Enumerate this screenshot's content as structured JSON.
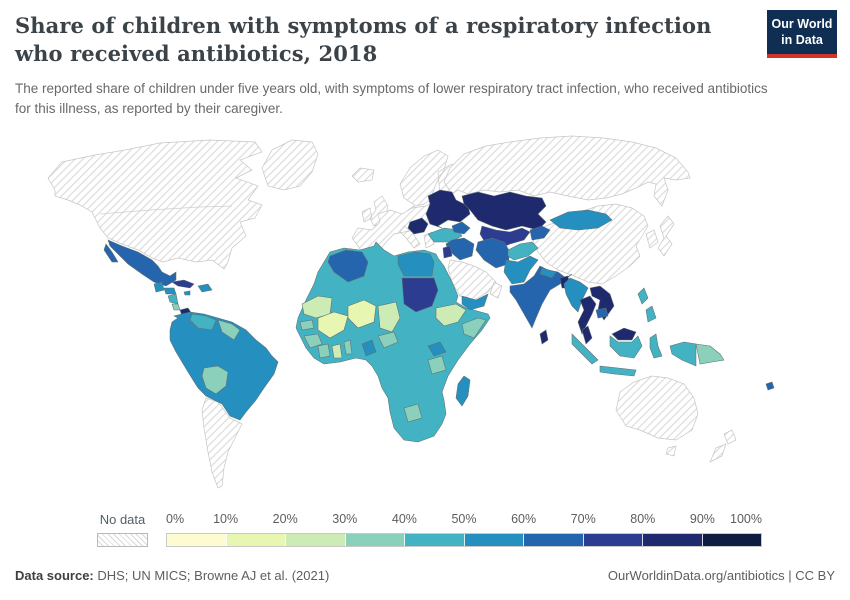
{
  "header": {
    "logo": {
      "line1": "Our World",
      "line2": "in Data",
      "bg_color": "#0f2e52",
      "accent_color": "#d0342c"
    }
  },
  "footer": {
    "datasource_label": "Data source:",
    "datasource_value": " DHS; UN MICS; Browne AJ et al. (2021)",
    "license_text": "OurWorldinData.org/antibiotics | CC BY"
  },
  "chart_data": {
    "type": "choropleth_map",
    "title": "Share of children with symptoms of a respiratory infection who received antibiotics, 2018",
    "subtitle": "The reported share of children under five years old, with symptoms of lower respiratory tract infection, who received antibiotics for this illness, as reported by their caregiver.",
    "year_label": "2018",
    "unit": "%",
    "legend": {
      "no_data_label": "No data",
      "ticks": [
        "0%",
        "10%",
        "20%",
        "30%",
        "40%",
        "50%",
        "60%",
        "70%",
        "80%",
        "90%",
        "100%"
      ],
      "bin_ranges": [
        "0-10%",
        "10-20%",
        "20-30%",
        "30-40%",
        "40-50%",
        "50-60%",
        "60-70%",
        "70-80%",
        "80-90%",
        "90-100%"
      ],
      "bin_colors": [
        "#fcfcd0",
        "#e7f6b1",
        "#cdebb4",
        "#8bd0ba",
        "#43b3c4",
        "#2590c0",
        "#2565ae",
        "#2c3c90",
        "#1f2a6e",
        "#0e1c41"
      ]
    },
    "regions": {
      "canada-usa": {
        "label": "Canada & United States",
        "color": "no_data",
        "bin": "No data"
      },
      "greenland": {
        "label": "Greenland",
        "color": "no_data",
        "bin": "No data"
      },
      "iceland": {
        "label": "Iceland",
        "color": "no_data",
        "bin": "No data"
      },
      "uk-ireland": {
        "label": "United Kingdom & Ireland",
        "color": "no_data",
        "bin": "No data"
      },
      "scandinavia": {
        "label": "Scandinavia & Finland",
        "color": "no_data",
        "bin": "No data"
      },
      "europe-west": {
        "label": "Western & Central Europe",
        "color": "no_data",
        "bin": "No data"
      },
      "russia": {
        "label": "Russia",
        "color": "no_data",
        "bin": "No data"
      },
      "china": {
        "label": "China",
        "color": "no_data",
        "bin": "No data"
      },
      "korea": {
        "label": "South Korea",
        "color": "no_data",
        "bin": "No data"
      },
      "japan": {
        "label": "Japan",
        "color": "no_data",
        "bin": "No data"
      },
      "saudi-arabia": {
        "label": "Saudi Arabia",
        "color": "no_data",
        "bin": "No data"
      },
      "oman": {
        "label": "Oman",
        "color": "no_data",
        "bin": "No data"
      },
      "australia": {
        "label": "Australia",
        "color": "no_data",
        "bin": "No data"
      },
      "new-zealand": {
        "label": "New Zealand",
        "color": "no_data",
        "bin": "No data"
      },
      "southern-cone": {
        "label": "Argentina, Chile, Paraguay & Uruguay",
        "color": "no_data",
        "bin": "No data"
      },
      "mexico": {
        "label": "Mexico",
        "color": "#2565ae",
        "bin": "60-70%"
      },
      "guatemala": {
        "label": "Guatemala & Belize",
        "color": "#2590c0",
        "bin": "50-60%"
      },
      "honduras": {
        "label": "Honduras",
        "color": "#2590c0",
        "bin": "50-60%"
      },
      "nicaragua": {
        "label": "Nicaragua",
        "color": "#43b3c4",
        "bin": "40-50%"
      },
      "costa-rica": {
        "label": "Costa Rica",
        "color": "#8bd0ba",
        "bin": "30-40%"
      },
      "panama": {
        "label": "Panama",
        "color": "#1f2a6e",
        "bin": "80-90%"
      },
      "cuba": {
        "label": "Cuba",
        "color": "#2c3c90",
        "bin": "70-80%"
      },
      "jamaica": {
        "label": "Jamaica",
        "color": "#2590c0",
        "bin": "50-60%"
      },
      "hispaniola": {
        "label": "Haiti & Dominican Republic",
        "color": "#2590c0",
        "bin": "50-60%"
      },
      "south-america": {
        "label": "Brazil, Colombia, Ecuador & Peru",
        "color": "#2590c0",
        "bin": "50-60%"
      },
      "venezuela": {
        "label": "Venezuela",
        "color": "#43b3c4",
        "bin": "40-50%"
      },
      "guyana-suriname": {
        "label": "Guyana & Suriname",
        "color": "#8bd0ba",
        "bin": "30-40%"
      },
      "bolivia": {
        "label": "Bolivia",
        "color": "#8bd0ba",
        "bin": "30-40%"
      },
      "africa-base": {
        "label": "Sub-Saharan Africa (various)",
        "color": "#43b3c4",
        "bin": "40-50%"
      },
      "algeria": {
        "label": "Algeria",
        "color": "#2565ae",
        "bin": "60-70%"
      },
      "egypt": {
        "label": "Egypt",
        "color": "#2590c0",
        "bin": "50-60%"
      },
      "sudan": {
        "label": "Sudan",
        "color": "#2c3c90",
        "bin": "70-80%"
      },
      "mauritania": {
        "label": "Mauritania & Western Sahara",
        "color": "#cdebb4",
        "bin": "20-30%"
      },
      "mali": {
        "label": "Mali",
        "color": "#e7f6b1",
        "bin": "10-20%"
      },
      "niger": {
        "label": "Niger",
        "color": "#e7f6b1",
        "bin": "10-20%"
      },
      "chad": {
        "label": "Chad",
        "color": "#cdebb4",
        "bin": "20-30%"
      },
      "senegal": {
        "label": "Senegal & Gambia",
        "color": "#8bd0ba",
        "bin": "30-40%"
      },
      "guinea": {
        "label": "Guinea & Sierra Leone",
        "color": "#8bd0ba",
        "bin": "30-40%"
      },
      "ivory-coast": {
        "label": "Côte d'Ivoire",
        "color": "#8bd0ba",
        "bin": "30-40%"
      },
      "ghana": {
        "label": "Ghana",
        "color": "#cdebb4",
        "bin": "20-30%"
      },
      "benin": {
        "label": "Benin & Togo",
        "color": "#8bd0ba",
        "bin": "30-40%"
      },
      "cameroon": {
        "label": "Cameroon",
        "color": "#2590c0",
        "bin": "50-60%"
      },
      "central-african-republic": {
        "label": "Central African Republic",
        "color": "#8bd0ba",
        "bin": "30-40%"
      },
      "ethiopia": {
        "label": "Ethiopia",
        "color": "#cdebb4",
        "bin": "20-30%"
      },
      "somalia": {
        "label": "Somalia",
        "color": "#8bd0ba",
        "bin": "30-40%"
      },
      "uganda-kenya": {
        "label": "Uganda",
        "color": "#2590c0",
        "bin": "50-60%"
      },
      "tanzania": {
        "label": "Tanzania",
        "color": "#8bd0ba",
        "bin": "30-40%"
      },
      "botswana": {
        "label": "Botswana",
        "color": "#8bd0ba",
        "bin": "30-40%"
      },
      "madagascar": {
        "label": "Madagascar",
        "color": "#2590c0",
        "bin": "50-60%"
      },
      "east-europe": {
        "label": "Belarus, Ukraine, Moldova & Romania",
        "color": "#1f2a6e",
        "bin": "80-90%"
      },
      "balkans": {
        "label": "Serbia, Bosnia, Albania & North Macedonia",
        "color": "#1f2a6e",
        "bin": "80-90%"
      },
      "turkey": {
        "label": "Turkey",
        "color": "#43b3c4",
        "bin": "40-50%"
      },
      "caucasus": {
        "label": "Georgia, Armenia & Azerbaijan",
        "color": "#2565ae",
        "bin": "60-70%"
      },
      "kazakhstan": {
        "label": "Kazakhstan",
        "color": "#1f2a6e",
        "bin": "80-90%"
      },
      "uzbekistan-turkmenistan": {
        "label": "Uzbekistan & Turkmenistan",
        "color": "#2c3c90",
        "bin": "70-80%"
      },
      "kyrgyzstan-tajikistan": {
        "label": "Kyrgyzstan & Tajikistan",
        "color": "#2565ae",
        "bin": "60-70%"
      },
      "syria-iraq": {
        "label": "Syria & Iraq",
        "color": "#2565ae",
        "bin": "60-70%"
      },
      "jordan": {
        "label": "Jordan",
        "color": "#2c3c90",
        "bin": "70-80%"
      },
      "iran": {
        "label": "Iran",
        "color": "#2565ae",
        "bin": "60-70%"
      },
      "yemen": {
        "label": "Yemen",
        "color": "#2590c0",
        "bin": "50-60%"
      },
      "afghanistan": {
        "label": "Afghanistan",
        "color": "#43b3c4",
        "bin": "40-50%"
      },
      "pakistan": {
        "label": "Pakistan",
        "color": "#2590c0",
        "bin": "50-60%"
      },
      "india": {
        "label": "India",
        "color": "#2565ae",
        "bin": "60-70%"
      },
      "nepal": {
        "label": "Nepal",
        "color": "#2590c0",
        "bin": "50-60%"
      },
      "bangladesh": {
        "label": "Bangladesh",
        "color": "#1f2a6e",
        "bin": "80-90%"
      },
      "sri-lanka": {
        "label": "Sri Lanka",
        "color": "#1f2a6e",
        "bin": "80-90%"
      },
      "mongolia": {
        "label": "Mongolia",
        "color": "#2590c0",
        "bin": "50-60%"
      },
      "myanmar": {
        "label": "Myanmar",
        "color": "#2590c0",
        "bin": "50-60%"
      },
      "thailand": {
        "label": "Thailand",
        "color": "#1f2a6e",
        "bin": "80-90%"
      },
      "laos-vietnam": {
        "label": "Laos & Vietnam",
        "color": "#1f2a6e",
        "bin": "80-90%"
      },
      "cambodia": {
        "label": "Cambodia",
        "color": "#2565ae",
        "bin": "60-70%"
      },
      "malaysia-peninsula": {
        "label": "Malaysia (peninsula)",
        "color": "#1f2a6e",
        "bin": "80-90%"
      },
      "malaysia-borneo": {
        "label": "Malaysia (Borneo)",
        "color": "#1f2a6e",
        "bin": "80-90%"
      },
      "indonesia": {
        "label": "Indonesia",
        "color": "#43b3c4",
        "bin": "40-50%"
      },
      "philippines": {
        "label": "Philippines",
        "color": "#43b3c4",
        "bin": "40-50%"
      },
      "papua-indonesia": {
        "label": "Indonesia (Papua)",
        "color": "#43b3c4",
        "bin": "40-50%"
      },
      "papua-new-guinea": {
        "label": "Papua New Guinea",
        "color": "#8bd0ba",
        "bin": "30-40%"
      },
      "fiji": {
        "label": "Fiji",
        "color": "#2565ae",
        "bin": "60-70%"
      }
    }
  }
}
